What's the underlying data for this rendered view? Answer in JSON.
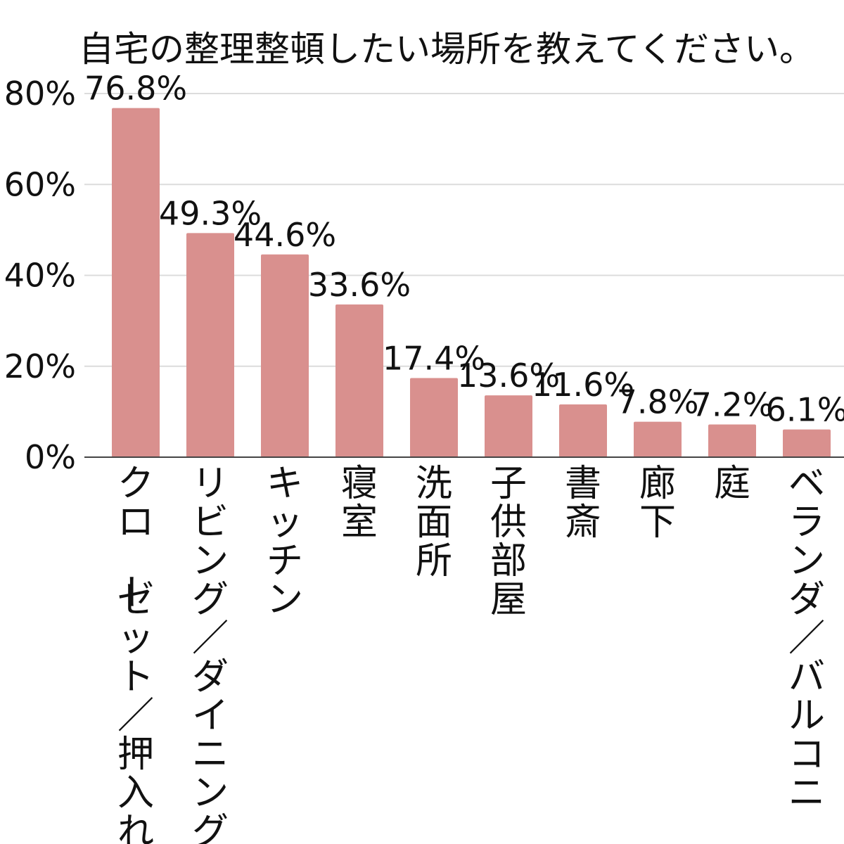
{
  "chart_data": {
    "type": "bar",
    "title": "自宅の整理整頓したい場所を教えてください。",
    "categories": [
      "クローゼット／押入れ",
      "リビング／ダイニング",
      "キッチン",
      "寝室",
      "洗面所",
      "子供部屋",
      "書斎",
      "廊下",
      "庭",
      "ベランダ／バルコニー"
    ],
    "values": [
      76.8,
      49.3,
      44.6,
      33.6,
      17.4,
      13.6,
      11.6,
      7.8,
      7.2,
      6.1
    ],
    "data_labels": [
      "76.8%",
      "49.3%",
      "44.6%",
      "33.6%",
      "17.4%",
      "13.6%",
      "11.6%",
      "7.8%",
      "7.2%",
      "6.1%"
    ],
    "ylim": [
      0,
      80
    ],
    "yticks": [
      0,
      20,
      40,
      60,
      80
    ],
    "ytick_labels": [
      "0%",
      "20%",
      "40%",
      "60%",
      "80%"
    ],
    "grid": true,
    "legend": "none",
    "bar_color": "#d9908e",
    "xlabel": "",
    "ylabel": ""
  }
}
